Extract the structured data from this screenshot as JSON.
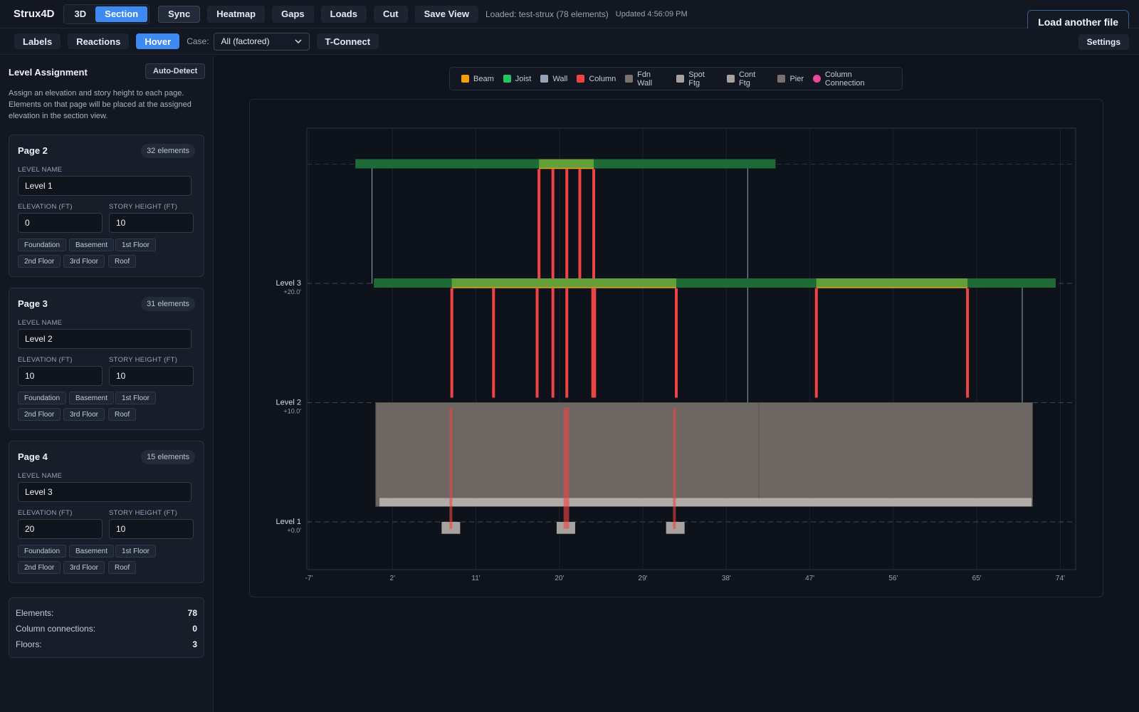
{
  "app": {
    "brand": "Strux4D"
  },
  "toolbar": {
    "view_3d": "3D",
    "view_section": "Section",
    "sync": "Sync",
    "heatmap": "Heatmap",
    "gaps": "Gaps",
    "loads": "Loads",
    "cut": "Cut",
    "save_view": "Save View",
    "status_loaded": "Loaded: test-strux (78 elements)",
    "status_updated": "Updated 4:56:09 PM",
    "load_another": "Load another file"
  },
  "secondbar": {
    "labels": "Labels",
    "reactions": "Reactions",
    "hover": "Hover",
    "case_label": "Case:",
    "case_value": "All (factored)",
    "tconnect": "T-Connect",
    "settings": "Settings"
  },
  "sidebar": {
    "title": "Level Assignment",
    "auto_detect": "Auto-Detect",
    "description": "Assign an elevation and story height to each page. Elements on that page will be placed at the assigned elevation in the section view.",
    "field_labels": {
      "level_name": "LEVEL NAME",
      "elevation": "ELEVATION (FT)",
      "story_height": "STORY HEIGHT (FT)"
    },
    "presets": [
      "Foundation",
      "Basement",
      "1st Floor",
      "2nd Floor",
      "3rd Floor",
      "Roof"
    ],
    "pages": [
      {
        "title": "Page 2",
        "count": "32 elements",
        "level_name": "Level 1",
        "elevation": "0",
        "story_height": "10"
      },
      {
        "title": "Page 3",
        "count": "31 elements",
        "level_name": "Level 2",
        "elevation": "10",
        "story_height": "10"
      },
      {
        "title": "Page 4",
        "count": "15 elements",
        "level_name": "Level 3",
        "elevation": "20",
        "story_height": "10"
      }
    ],
    "stats": [
      {
        "label": "Elements:",
        "value": "78"
      },
      {
        "label": "Column connections:",
        "value": "0"
      },
      {
        "label": "Floors:",
        "value": "3"
      }
    ]
  },
  "legend": [
    {
      "label": "Beam",
      "color": "#f59e0b",
      "shape": "square"
    },
    {
      "label": "Joist",
      "color": "#22c55e",
      "shape": "square"
    },
    {
      "label": "Wall",
      "color": "#94a3b8",
      "shape": "square"
    },
    {
      "label": "Column",
      "color": "#ef4444",
      "shape": "square"
    },
    {
      "label": "Fdn Wall",
      "color": "#78716c",
      "shape": "square"
    },
    {
      "label": "Spot Ftg",
      "color": "#a8a29e",
      "shape": "square"
    },
    {
      "label": "Cont Ftg",
      "color": "#a8a29e",
      "shape": "square"
    },
    {
      "label": "Pier",
      "color": "#78716c",
      "shape": "square"
    },
    {
      "label": "Column Connection",
      "color": "#ec4899",
      "shape": "circle"
    }
  ],
  "section": {
    "x_range_ft": [
      -7,
      78
    ],
    "y_range_ft": [
      -6.5,
      30
    ],
    "x_ticks": [
      "-7'",
      "2'",
      "11'",
      "20'",
      "29'",
      "38'",
      "47'",
      "56'",
      "65'",
      "74'"
    ],
    "x_tick_values": [
      -7,
      2,
      11,
      20,
      29,
      38,
      47,
      56,
      65,
      74
    ],
    "levels": [
      {
        "name": "Level 1",
        "elev_label": "+0.0'",
        "elev": 0
      },
      {
        "name": "Level 2",
        "elev_label": "+10.0'",
        "elev": 10
      },
      {
        "name": "Level 3",
        "elev_label": "+20.0'",
        "elev": 20
      }
    ],
    "joists": [
      {
        "x1": -2,
        "x2": 43.3,
        "elev": 30
      },
      {
        "x1": 0,
        "x2": 73.5,
        "elev": 20
      }
    ],
    "beams": [
      {
        "x1": 17.8,
        "x2": 23.7,
        "elev": 30
      },
      {
        "x1": 8.4,
        "x2": 32.6,
        "elev": 20
      },
      {
        "x1": 47.7,
        "x2": 64,
        "elev": 20
      }
    ],
    "columns": [
      {
        "x": 17.8,
        "bottom": 20,
        "top": 30
      },
      {
        "x": 19.3,
        "bottom": 20,
        "top": 30
      },
      {
        "x": 20.8,
        "bottom": 20,
        "top": 30
      },
      {
        "x": 22.2,
        "bottom": 20,
        "top": 30
      },
      {
        "x": 23.7,
        "bottom": 20,
        "top": 30
      },
      {
        "x": 8.4,
        "bottom": 10,
        "top": 20
      },
      {
        "x": 12.9,
        "bottom": 10,
        "top": 20
      },
      {
        "x": 17.6,
        "bottom": 10,
        "top": 20
      },
      {
        "x": 19.3,
        "bottom": 10,
        "top": 20
      },
      {
        "x": 20.8,
        "bottom": 10,
        "top": 20
      },
      {
        "x": 23.6,
        "bottom": 10,
        "top": 20
      },
      {
        "x": 23.8,
        "bottom": 10,
        "top": 20
      },
      {
        "x": 32.6,
        "bottom": 10,
        "top": 20
      },
      {
        "x": 47.7,
        "bottom": 10,
        "top": 20
      },
      {
        "x": 64,
        "bottom": 10,
        "top": 20
      },
      {
        "x": 8.3,
        "bottom": -1,
        "top": 10
      },
      {
        "x": 20.6,
        "bottom": -1,
        "top": 10
      },
      {
        "x": 20.9,
        "bottom": -1,
        "top": 10
      },
      {
        "x": 32.4,
        "bottom": -1,
        "top": 10
      }
    ],
    "walls": [
      {
        "x": -0.2,
        "bottom": 20,
        "top": 30
      },
      {
        "x": 40.3,
        "bottom": 10,
        "top": 30
      },
      {
        "x": 69.9,
        "bottom": 10,
        "top": 20
      }
    ],
    "fdn_walls": [
      {
        "x1": 0.2,
        "x2": 41.5,
        "bottom": 1.3,
        "top": 10
      },
      {
        "x1": 41.5,
        "x2": 71,
        "bottom": 1.3,
        "top": 10
      }
    ],
    "cont_ftgs": [
      {
        "x1": 0.6,
        "x2": 70.9,
        "bottom": 1.3,
        "top": 2
      }
    ],
    "spot_ftgs": [
      {
        "x": 8.3,
        "bottom": -1,
        "top": 0
      },
      {
        "x": 20.7,
        "bottom": -1,
        "top": 0
      },
      {
        "x": 32.5,
        "bottom": -1,
        "top": 0
      }
    ]
  }
}
